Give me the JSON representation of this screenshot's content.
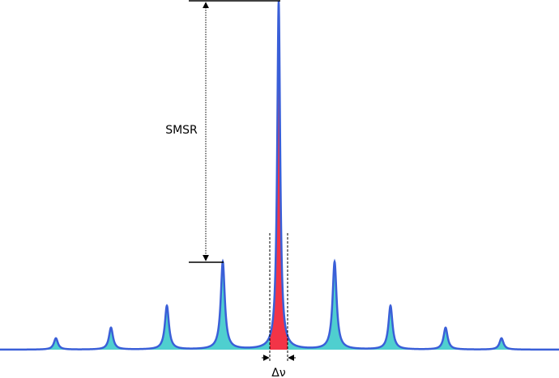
{
  "labels": {
    "smsr": "SMSR",
    "linewidth": "Δν"
  }
}
